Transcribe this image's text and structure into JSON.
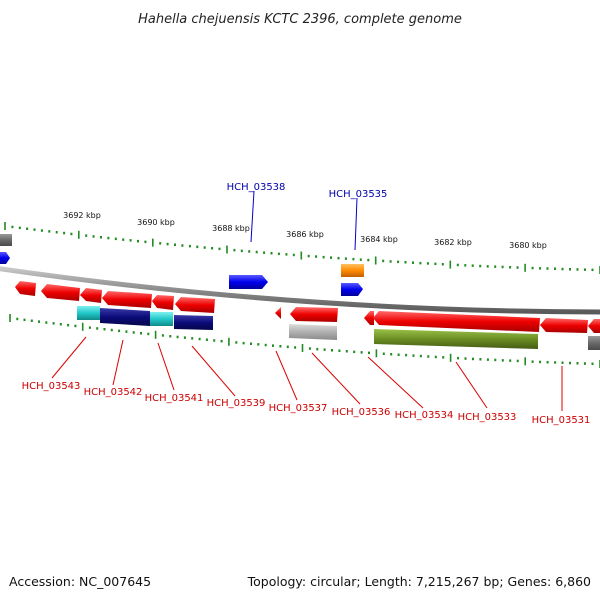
{
  "title": "Hahella chejuensis KCTC 2396, complete genome",
  "accession": "Accession: NC_007645",
  "summary": "Topology: circular; Length: 7,215,267 bp; Genes: 6,860",
  "scale": {
    "ticks": [
      "3692 kbp",
      "3690 kbp",
      "3688 kbp",
      "3686 kbp",
      "3684 kbp",
      "3682 kbp",
      "3680 kbp"
    ]
  },
  "colors": {
    "backbone": "#8a8a8a",
    "forward_gene": "#0000ee",
    "reverse_gene": "#ee0000",
    "tick": "#228b22",
    "cyan": "#22c8c8",
    "navy": "#0b0b7a",
    "gray_gene": "#a8a8a8",
    "olive": "#6b8e23",
    "orange": "#ff8c00",
    "label_red": "#cc0000",
    "label_blue": "#0000aa"
  },
  "labels_top": [
    "HCH_03538",
    "HCH_03535"
  ],
  "labels_bottom": [
    "HCH_03543",
    "HCH_03542",
    "HCH_03541",
    "HCH_03539",
    "HCH_03537",
    "HCH_03536",
    "HCH_03534",
    "HCH_03533",
    "HCH_03531"
  ]
}
